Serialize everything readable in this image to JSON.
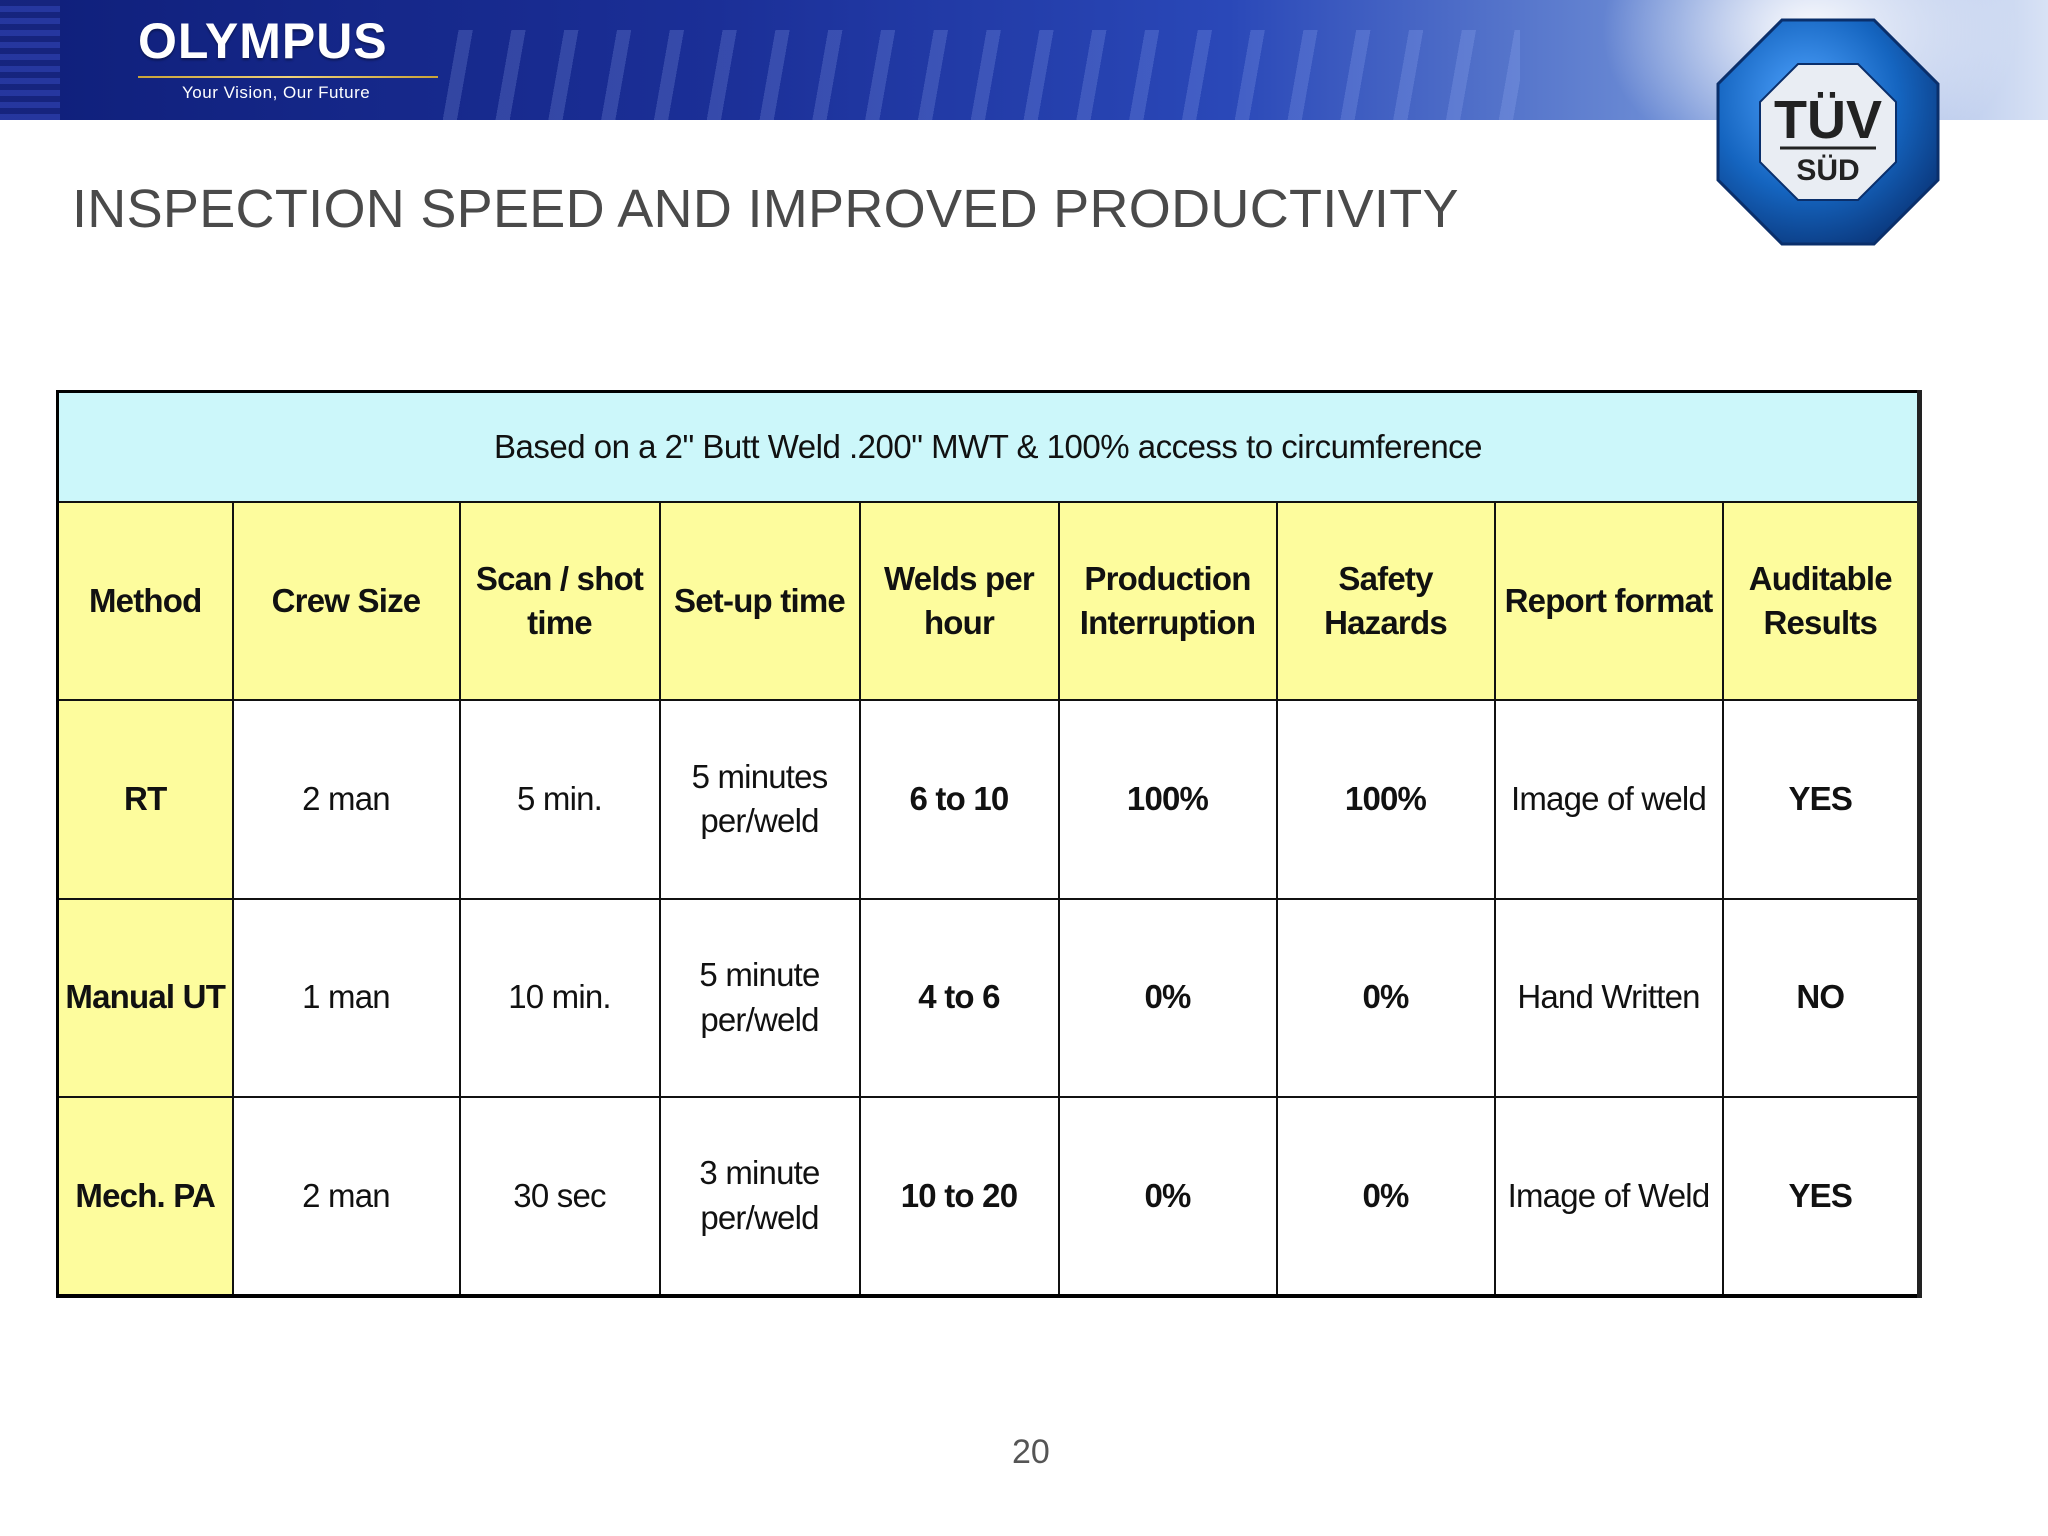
{
  "header": {
    "logo_text": "OLYMPUS",
    "tagline": "Your Vision, Our Future",
    "badge_line1": "TÜV",
    "badge_line2": "SÜD",
    "brand_color": "#1b2f97",
    "badge_color": "#1565c0"
  },
  "slide": {
    "title": "INSPECTION SPEED AND IMPROVED PRODUCTIVITY",
    "page_number": "20"
  },
  "table": {
    "caption": "Based on  a 2\" Butt Weld .200\" MWT  & 100% access to circumference",
    "headers": [
      "Method",
      "Crew Size",
      "Scan / shot time",
      "Set-up time",
      "Welds per hour",
      "Production Interruption",
      "Safety Hazards",
      "Report format",
      "Auditable Results"
    ],
    "rows": [
      [
        "RT",
        "2 man",
        "5 min.",
        "5 minutes per/weld",
        "6 to 10",
        "100%",
        "100%",
        "Image of weld",
        "YES"
      ],
      [
        "Manual UT",
        "1 man",
        "10 min.",
        "5 minute per/weld",
        "4 to 6",
        "0%",
        "0%",
        "Hand Written",
        "NO"
      ],
      [
        "Mech. PA",
        "2 man",
        "30 sec",
        "3 minute per/weld",
        "10 to 20",
        "0%",
        "0%",
        "Image of Weld",
        "YES"
      ]
    ],
    "header_color": "#fdfc9d",
    "caption_color": "#ccf7fa"
  }
}
